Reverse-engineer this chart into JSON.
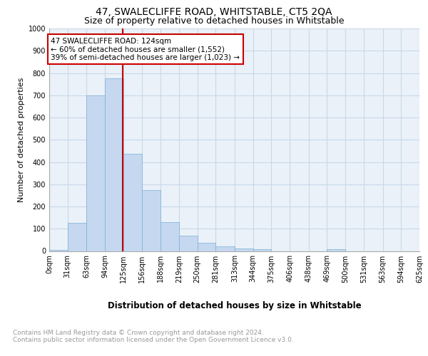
{
  "title": "47, SWALECLIFFE ROAD, WHITSTABLE, CT5 2QA",
  "subtitle": "Size of property relative to detached houses in Whitstable",
  "xlabel": "Distribution of detached houses by size in Whitstable",
  "ylabel": "Number of detached properties",
  "bar_edges": [
    0,
    31,
    63,
    94,
    125,
    156,
    188,
    219,
    250,
    281,
    313,
    344,
    375,
    406,
    438,
    469,
    500,
    531,
    563,
    594,
    625
  ],
  "bar_heights": [
    5,
    128,
    700,
    775,
    438,
    275,
    130,
    68,
    38,
    22,
    10,
    8,
    0,
    0,
    0,
    8,
    0,
    0,
    0,
    0
  ],
  "bar_color": "#c5d8f0",
  "bar_edge_color": "#7bafd4",
  "property_line_x": 124,
  "property_line_color": "#cc0000",
  "annotation_box_color": "#cc0000",
  "annotation_text": "47 SWALECLIFFE ROAD: 124sqm\n← 60% of detached houses are smaller (1,552)\n39% of semi-detached houses are larger (1,023) →",
  "annotation_fontsize": 7.5,
  "ylim": [
    0,
    1000
  ],
  "yticks": [
    0,
    100,
    200,
    300,
    400,
    500,
    600,
    700,
    800,
    900,
    1000
  ],
  "x_tick_labels": [
    "0sqm",
    "31sqm",
    "63sqm",
    "94sqm",
    "125sqm",
    "156sqm",
    "188sqm",
    "219sqm",
    "250sqm",
    "281sqm",
    "313sqm",
    "344sqm",
    "375sqm",
    "406sqm",
    "438sqm",
    "469sqm",
    "500sqm",
    "531sqm",
    "563sqm",
    "594sqm",
    "625sqm"
  ],
  "grid_color": "#c8d8e8",
  "bg_color": "#eaf1f8",
  "footnote": "Contains HM Land Registry data © Crown copyright and database right 2024.\nContains public sector information licensed under the Open Government Licence v3.0.",
  "title_fontsize": 10,
  "subtitle_fontsize": 9,
  "xlabel_fontsize": 8.5,
  "ylabel_fontsize": 8,
  "tick_fontsize": 7,
  "footnote_fontsize": 6.5
}
